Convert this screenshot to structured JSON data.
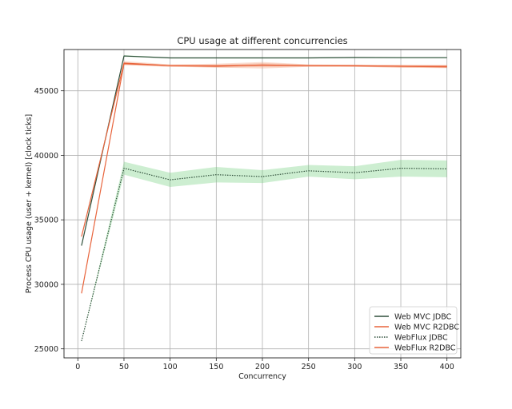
{
  "chart_data": {
    "type": "line",
    "title": "CPU usage at different concurrencies",
    "xlabel": "Concurrency",
    "ylabel": "Process CPU usage (user + kernel) [clock ticks]",
    "x": [
      4,
      50,
      100,
      150,
      200,
      250,
      300,
      350,
      400
    ],
    "xticks": [
      0,
      50,
      100,
      150,
      200,
      250,
      300,
      350,
      400
    ],
    "yticks": [
      25000,
      30000,
      35000,
      40000,
      45000
    ],
    "xlim": [
      -15,
      415
    ],
    "ylim": [
      24300,
      48200
    ],
    "grid": true,
    "legend_position": "lower right",
    "series": [
      {
        "name": "Web MVC JDBC",
        "color": "#2f4f3a",
        "dash": "solid",
        "values": [
          33000,
          47700,
          47550,
          47550,
          47550,
          47550,
          47580,
          47570,
          47570
        ],
        "band": [
          0,
          60,
          40,
          40,
          40,
          40,
          40,
          40,
          40
        ]
      },
      {
        "name": "Web MVC R2DBC",
        "color": "#e8643c",
        "dash": "solid",
        "values": [
          33700,
          47150,
          46950,
          46950,
          46980,
          46950,
          46930,
          46900,
          46900
        ],
        "band": [
          0,
          150,
          100,
          150,
          250,
          100,
          80,
          120,
          120
        ]
      },
      {
        "name": "WebFlux JDBC",
        "color": "#2f4f3a",
        "dash": "dotted",
        "values": [
          25600,
          39000,
          38100,
          38500,
          38350,
          38800,
          38650,
          39000,
          38950
        ],
        "band": [
          0,
          500,
          550,
          600,
          500,
          450,
          500,
          650,
          650
        ]
      },
      {
        "name": "WebFlux R2DBC",
        "color": "#e8643c",
        "dash": "solid",
        "values": [
          29300,
          47100,
          46950,
          46900,
          47000,
          46950,
          46950,
          46900,
          46850
        ],
        "band": [
          0,
          100,
          80,
          100,
          150,
          80,
          80,
          100,
          100
        ]
      }
    ]
  }
}
